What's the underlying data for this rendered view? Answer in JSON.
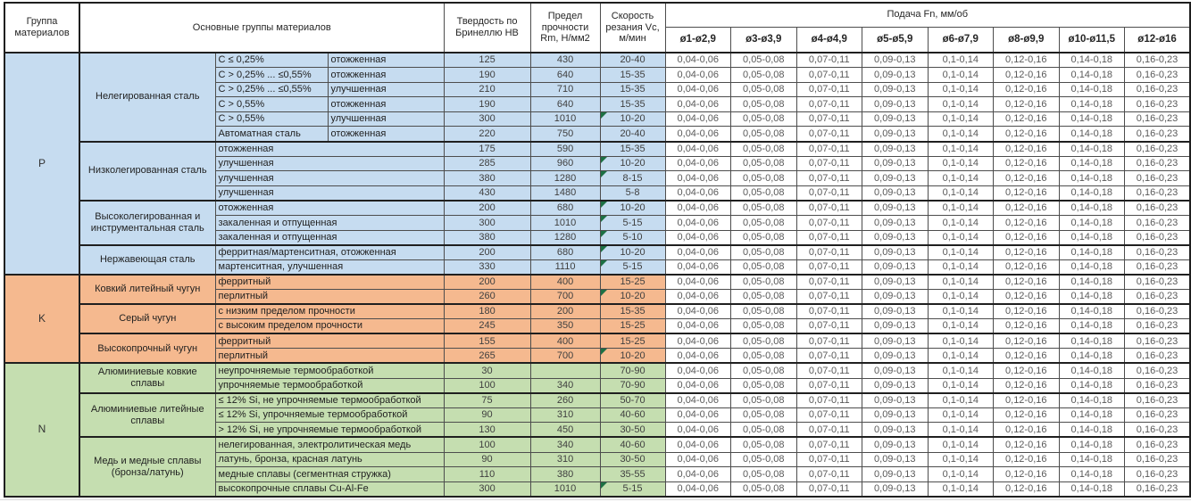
{
  "header": {
    "col_group": "Группа материалов",
    "col_main_groups": "Основные группы материалов",
    "col_hardness": "Твердость по Бринеллю HB",
    "col_strength": "Предел прочности Rm, Н/мм2",
    "col_speed": "Скорость резания Vc, м/мин",
    "feed_title": "Подача Fn, мм/об",
    "feed_cols": [
      "ø1-ø2,9",
      "ø3-ø3,9",
      "ø4-ø4,9",
      "ø5-ø5,9",
      "ø6-ø7,9",
      "ø8-ø9,9",
      "ø10-ø11,5",
      "ø12-ø16"
    ]
  },
  "feed_values": [
    "0,04-0,06",
    "0,05-0,08",
    "0,07-0,11",
    "0,09-0,13",
    "0,1-0,14",
    "0,12-0,16",
    "0,14-0,18",
    "0,16-0,23"
  ],
  "colors": {
    "p_fill": "#c6dcf0",
    "k_fill": "#f5b98f",
    "n_fill": "#c5deb0",
    "flag_green": "#1d7044",
    "grid": "#4d4d4d"
  },
  "groups": [
    {
      "code": "P",
      "color": "#c6dcf0",
      "subgroups": [
        {
          "name": "Нелегированная сталь",
          "rows": [
            {
              "desc": "C ≤ 0,25%",
              "state": "отожженная",
              "hb": "125",
              "rm": "430",
              "vc": "20-40",
              "flag": false
            },
            {
              "desc": "C > 0,25% ... ≤0,55%",
              "state": "отожженная",
              "hb": "190",
              "rm": "640",
              "vc": "15-35",
              "flag": false
            },
            {
              "desc": "C > 0,25% ... ≤0,55%",
              "state": "улучшенная",
              "hb": "210",
              "rm": "710",
              "vc": "15-35",
              "flag": false
            },
            {
              "desc": "C > 0,55%",
              "state": "отожженная",
              "hb": "190",
              "rm": "640",
              "vc": "15-35",
              "flag": false
            },
            {
              "desc": "C > 0,55%",
              "state": "улучшенная",
              "hb": "300",
              "rm": "1010",
              "vc": "10-20",
              "flag": true
            },
            {
              "desc": "Автоматная сталь",
              "state": "отожженная",
              "hb": "220",
              "rm": "750",
              "vc": "20-40",
              "flag": false
            }
          ]
        },
        {
          "name": "Низколегированная сталь",
          "rows": [
            {
              "desc": "отожженная",
              "state": null,
              "hb": "175",
              "rm": "590",
              "vc": "15-35",
              "flag": false
            },
            {
              "desc": "улучшенная",
              "state": null,
              "hb": "285",
              "rm": "960",
              "vc": "10-20",
              "flag": true
            },
            {
              "desc": "улучшенная",
              "state": null,
              "hb": "380",
              "rm": "1280",
              "vc": "8-15",
              "flag": true
            },
            {
              "desc": "улучшенная",
              "state": null,
              "hb": "430",
              "rm": "1480",
              "vc": "5-8",
              "flag": false
            }
          ]
        },
        {
          "name": "Высоколегированная и инструментальная сталь",
          "rows": [
            {
              "desc": "отожженная",
              "state": null,
              "hb": "200",
              "rm": "680",
              "vc": "10-20",
              "flag": true
            },
            {
              "desc": "закаленная и отпущенная",
              "state": null,
              "hb": "300",
              "rm": "1010",
              "vc": "5-15",
              "flag": true
            },
            {
              "desc": "закаленная и отпущенная",
              "state": null,
              "hb": "380",
              "rm": "1280",
              "vc": "5-10",
              "flag": true
            }
          ]
        },
        {
          "name": "Нержавеющая сталь",
          "rows": [
            {
              "desc": "ферритная/мартенситная, отожженная",
              "state": null,
              "hb": "200",
              "rm": "680",
              "vc": "10-20",
              "flag": true
            },
            {
              "desc": "мартенситная, улучшенная",
              "state": null,
              "hb": "330",
              "rm": "1110",
              "vc": "5-15",
              "flag": true
            }
          ]
        }
      ]
    },
    {
      "code": "K",
      "color": "#f5b98f",
      "subgroups": [
        {
          "name": "Ковкий литейный чугун",
          "rows": [
            {
              "desc": "ферритный",
              "state": null,
              "hb": "200",
              "rm": "400",
              "vc": "15-25",
              "flag": false
            },
            {
              "desc": "перлитный",
              "state": null,
              "hb": "260",
              "rm": "700",
              "vc": "10-20",
              "flag": true
            }
          ]
        },
        {
          "name": "Серый чугун",
          "rows": [
            {
              "desc": "с низким пределом прочности",
              "state": null,
              "hb": "180",
              "rm": "200",
              "vc": "15-35",
              "flag": false
            },
            {
              "desc": "с высоким пределом прочности",
              "state": null,
              "hb": "245",
              "rm": "350",
              "vc": "15-25",
              "flag": false
            }
          ]
        },
        {
          "name": "Высокопрочный чугун",
          "rows": [
            {
              "desc": "ферритный",
              "state": null,
              "hb": "155",
              "rm": "400",
              "vc": "15-25",
              "flag": false
            },
            {
              "desc": "перлитный",
              "state": null,
              "hb": "265",
              "rm": "700",
              "vc": "10-20",
              "flag": true
            }
          ]
        }
      ]
    },
    {
      "code": "N",
      "color": "#c5deb0",
      "subgroups": [
        {
          "name": "Алюминиевые ковкие сплавы",
          "rows": [
            {
              "desc": "неупрочняемые термообработкой",
              "state": null,
              "hb": "30",
              "rm": "",
              "vc": "70-90",
              "flag": false
            },
            {
              "desc": "упрочняемые термообработкой",
              "state": null,
              "hb": "100",
              "rm": "340",
              "vc": "70-90",
              "flag": false
            }
          ]
        },
        {
          "name": "Алюминиевые литейные сплавы",
          "rows": [
            {
              "desc": "≤ 12% Si, не упрочняемые термообработкой",
              "state": null,
              "hb": "75",
              "rm": "260",
              "vc": "50-70",
              "flag": false
            },
            {
              "desc": "≤ 12% Si, упрочняемые термообработкой",
              "state": null,
              "hb": "90",
              "rm": "310",
              "vc": "40-60",
              "flag": false
            },
            {
              "desc": "> 12% Si, не упрочняемые термообработкой",
              "state": null,
              "hb": "130",
              "rm": "450",
              "vc": "30-50",
              "flag": false
            }
          ]
        },
        {
          "name": "Медь и медные сплавы (бронза/латунь)",
          "rows": [
            {
              "desc": "нелегированная, электролитическая медь",
              "state": null,
              "hb": "100",
              "rm": "340",
              "vc": "40-60",
              "flag": false
            },
            {
              "desc": "латунь, бронза, красная латунь",
              "state": null,
              "hb": "90",
              "rm": "310",
              "vc": "30-50",
              "flag": false
            },
            {
              "desc": "медные сплавы (сегментная стружка)",
              "state": null,
              "hb": "110",
              "rm": "380",
              "vc": "35-55",
              "flag": false
            },
            {
              "desc": "высокопрочные сплавы Cu-Al-Fe",
              "state": null,
              "hb": "300",
              "rm": "1010",
              "vc": "5-15",
              "flag": true
            }
          ]
        }
      ]
    }
  ]
}
